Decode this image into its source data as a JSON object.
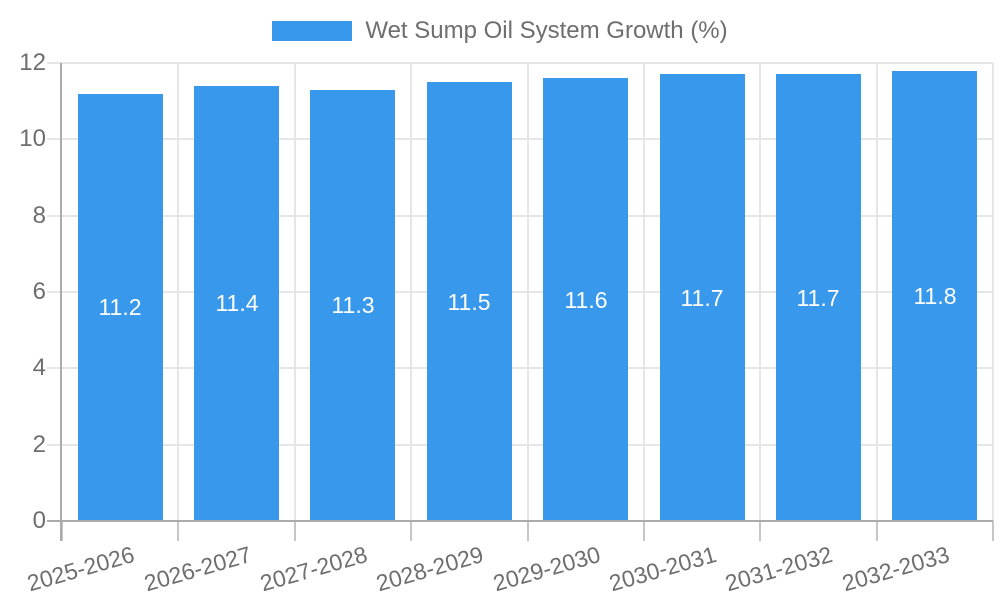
{
  "legend": {
    "label": "Wet Sump Oil System Growth (%)"
  },
  "chart_data": {
    "type": "bar",
    "title": "Wet Sump Oil System Growth (%)",
    "categories": [
      "2025-2026",
      "2026-2027",
      "2027-2028",
      "2028-2029",
      "2029-2030",
      "2030-2031",
      "2031-2032",
      "2032-2033"
    ],
    "series": [
      {
        "name": "Wet Sump Oil System Growth (%)",
        "values": [
          11.2,
          11.4,
          11.3,
          11.5,
          11.6,
          11.7,
          11.7,
          11.8
        ]
      }
    ],
    "value_labels": [
      "11.2",
      "11.4",
      "11.3",
      "11.5",
      "11.6",
      "11.7",
      "11.7",
      "11.8"
    ],
    "xlabel": "",
    "ylabel": "",
    "ylim": [
      0,
      12
    ],
    "ytick_step": 2,
    "yticks": [
      0,
      2,
      4,
      6,
      8,
      10,
      12
    ],
    "grid": true,
    "legend_position": "top",
    "x_label_rotation_deg": -16,
    "colors": {
      "bar": "#3899ec",
      "value_label": "#ffffff",
      "axis_text": "#6e6e6e",
      "gridline": "#e6e6e6",
      "axis_line": "#ababab",
      "tick": "#c6c6c6",
      "background": "#ffffff"
    }
  }
}
